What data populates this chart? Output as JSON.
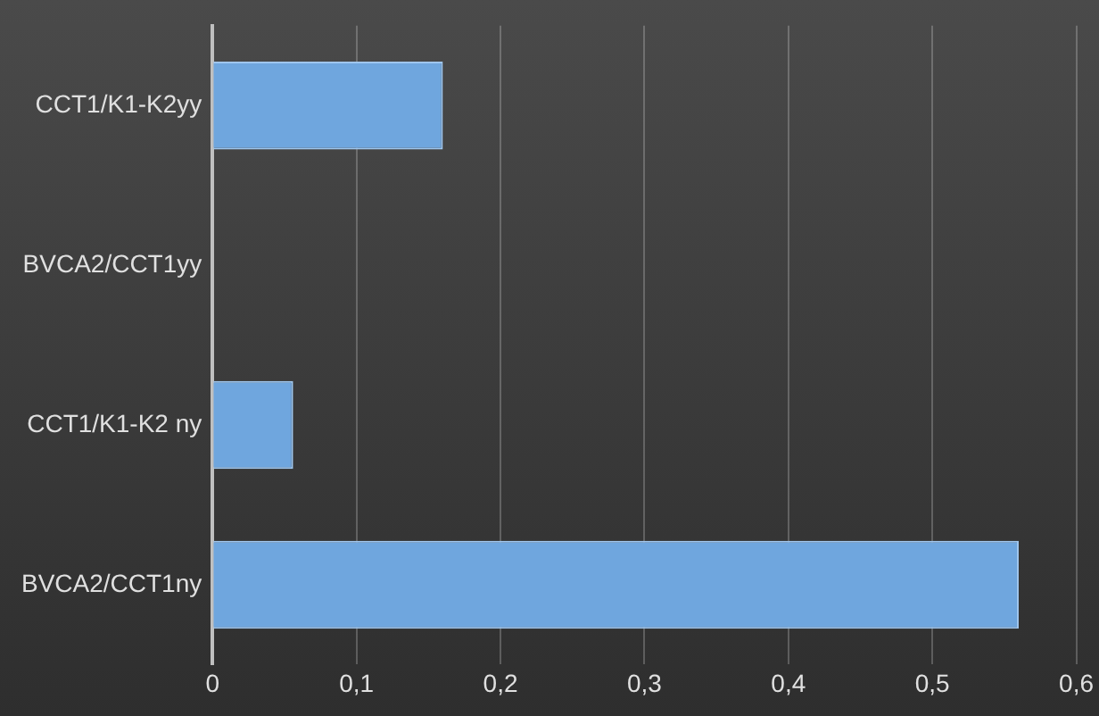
{
  "chart_data": {
    "type": "bar",
    "orientation": "horizontal",
    "categories": [
      "CCT1/K1-K2yy",
      "BVCA2/CCT1yy",
      "CCT1/K1-K2 ny",
      "BVCA2/CCT1ny"
    ],
    "values": [
      0.16,
      0,
      0.056,
      0.56
    ],
    "color": "#6fa6de",
    "xlim": [
      0,
      0.6
    ],
    "xticks": [
      0,
      {
        "value": 0.1,
        "label": "0,1"
      },
      {
        "value": 0.2,
        "label": "0,2"
      },
      {
        "value": 0.3,
        "label": "0,3"
      },
      {
        "value": 0.4,
        "label": "0,4"
      },
      {
        "value": 0.5,
        "label": "0,5"
      },
      {
        "value": 0.6,
        "label": "0,6"
      }
    ],
    "grid": "x",
    "legend": false
  }
}
